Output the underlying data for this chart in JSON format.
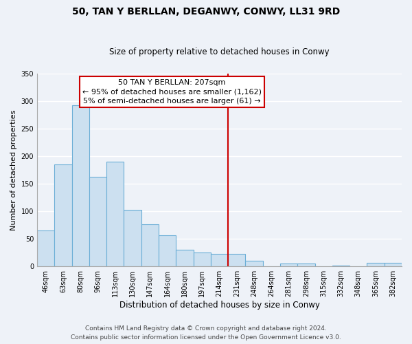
{
  "title": "50, TAN Y BERLLAN, DEGANWY, CONWY, LL31 9RD",
  "subtitle": "Size of property relative to detached houses in Conwy",
  "xlabel": "Distribution of detached houses by size in Conwy",
  "ylabel": "Number of detached properties",
  "categories": [
    "46sqm",
    "63sqm",
    "80sqm",
    "96sqm",
    "113sqm",
    "130sqm",
    "147sqm",
    "164sqm",
    "180sqm",
    "197sqm",
    "214sqm",
    "231sqm",
    "248sqm",
    "264sqm",
    "281sqm",
    "298sqm",
    "315sqm",
    "332sqm",
    "348sqm",
    "365sqm",
    "382sqm"
  ],
  "values": [
    65,
    185,
    292,
    163,
    190,
    103,
    76,
    56,
    30,
    25,
    23,
    23,
    10,
    0,
    6,
    5,
    0,
    2,
    0,
    7,
    7
  ],
  "bar_color": "#cce0f0",
  "bar_edge_color": "#6baed6",
  "annotation_line": "50 TAN Y BERLLAN: 207sqm",
  "annotation_line2": "← 95% of detached houses are smaller (1,162)",
  "annotation_line3": "5% of semi-detached houses are larger (61) →",
  "annotation_box_color": "#ffffff",
  "annotation_box_edge_color": "#cc0000",
  "vline_x_index": 11,
  "vline_color": "#cc0000",
  "ylim": [
    0,
    350
  ],
  "yticks": [
    0,
    50,
    100,
    150,
    200,
    250,
    300,
    350
  ],
  "footer_text": "Contains HM Land Registry data © Crown copyright and database right 2024.\nContains public sector information licensed under the Open Government Licence v3.0.",
  "background_color": "#eef2f8",
  "grid_color": "#ffffff",
  "title_fontsize": 10,
  "subtitle_fontsize": 8.5,
  "xlabel_fontsize": 8.5,
  "ylabel_fontsize": 8,
  "tick_fontsize": 7,
  "annotation_fontsize": 8,
  "footer_fontsize": 6.5
}
